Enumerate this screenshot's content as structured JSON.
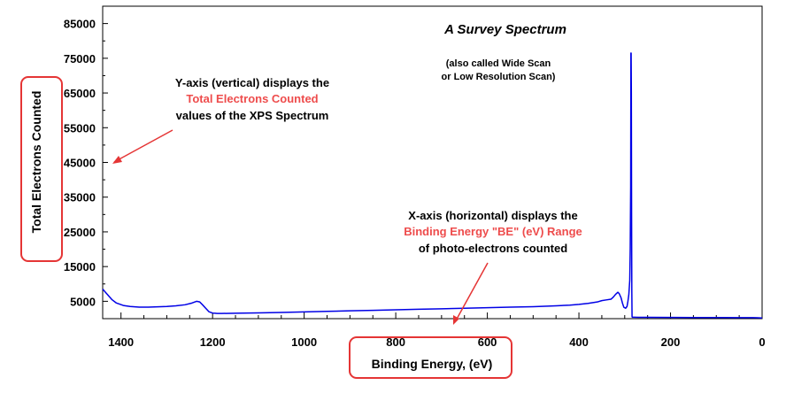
{
  "chart_data": {
    "type": "line",
    "title": "A Survey Spectrum",
    "subtitle": [
      "(also called Wide Scan",
      "or Low Resolution Scan)"
    ],
    "xlabel": "Binding Energy, (eV)",
    "ylabel": "Total Electrons Counted",
    "xlim": [
      1440,
      0
    ],
    "ylim": [
      0,
      90000
    ],
    "x_reversed": true,
    "x_ticks": [
      1400,
      1200,
      1000,
      800,
      600,
      400,
      200,
      0
    ],
    "x_tick_labels": [
      "1400",
      "1200",
      "1000",
      "800",
      "600",
      "400",
      "200",
      "0"
    ],
    "y_ticks": [
      5000,
      15000,
      25000,
      35000,
      45000,
      55000,
      65000,
      75000,
      85000
    ],
    "y_tick_labels": [
      "5000",
      "15000",
      "25000",
      "35000",
      "45000",
      "55000",
      "65000",
      "75000",
      "85000"
    ],
    "grid": false,
    "series": [
      {
        "color": "#0000e6",
        "x": [
          1440,
          1430,
          1420,
          1410,
          1395,
          1380,
          1360,
          1340,
          1320,
          1300,
          1280,
          1260,
          1245,
          1235,
          1228,
          1222,
          1215,
          1208,
          1200,
          1195,
          1190,
          1180,
          1150,
          1100,
          1050,
          1000,
          950,
          900,
          850,
          800,
          750,
          700,
          650,
          600,
          550,
          500,
          450,
          420,
          400,
          380,
          360,
          350,
          340,
          330,
          325,
          320,
          315,
          312,
          308,
          305,
          302,
          298,
          295,
          293,
          291,
          289,
          288,
          287,
          286.5,
          286,
          285.5,
          285,
          284.5,
          284,
          283.5,
          283,
          282,
          280,
          270,
          250,
          200,
          150,
          100,
          50,
          20,
          10,
          5,
          0
        ],
        "y": [
          8500,
          7000,
          5500,
          4500,
          3800,
          3500,
          3300,
          3300,
          3400,
          3500,
          3700,
          4000,
          4500,
          5000,
          4800,
          4000,
          3000,
          2000,
          1600,
          1550,
          1500,
          1500,
          1550,
          1650,
          1800,
          1950,
          2100,
          2250,
          2400,
          2550,
          2700,
          2850,
          3000,
          3150,
          3300,
          3450,
          3700,
          3900,
          4100,
          4400,
          4800,
          5200,
          5400,
          5600,
          6200,
          7000,
          7600,
          7200,
          6000,
          4500,
          3300,
          3000,
          3500,
          5000,
          7000,
          11000,
          20000,
          38000,
          76500,
          76500,
          65000,
          30000,
          8000,
          600,
          400,
          400,
          400,
          400,
          380,
          370,
          350,
          330,
          310,
          300,
          280,
          250,
          230,
          200
        ]
      }
    ]
  },
  "annotations": {
    "y_note": {
      "line1": "Y-axis (vertical) displays the",
      "line2": "Total Electrons Counted",
      "line3": "values of the XPS Spectrum"
    },
    "x_note": {
      "line1": "X-axis (horizontal) displays the",
      "line2": "Binding Energy \"BE\" (eV) Range",
      "line3": "of photo-electrons counted"
    },
    "highlight_color": "#ee4c4c"
  }
}
